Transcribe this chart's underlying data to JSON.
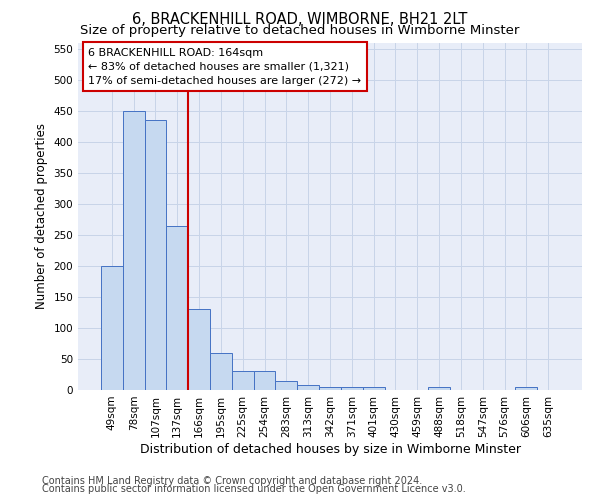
{
  "title": "6, BRACKENHILL ROAD, WIMBORNE, BH21 2LT",
  "subtitle": "Size of property relative to detached houses in Wimborne Minster",
  "xlabel": "Distribution of detached houses by size in Wimborne Minster",
  "ylabel": "Number of detached properties",
  "footnote1": "Contains HM Land Registry data © Crown copyright and database right 2024.",
  "footnote2": "Contains public sector information licensed under the Open Government Licence v3.0.",
  "bar_labels": [
    "49sqm",
    "78sqm",
    "107sqm",
    "137sqm",
    "166sqm",
    "195sqm",
    "225sqm",
    "254sqm",
    "283sqm",
    "313sqm",
    "342sqm",
    "371sqm",
    "401sqm",
    "430sqm",
    "459sqm",
    "488sqm",
    "518sqm",
    "547sqm",
    "576sqm",
    "606sqm",
    "635sqm"
  ],
  "bar_values": [
    200,
    450,
    435,
    265,
    130,
    60,
    30,
    30,
    15,
    8,
    5,
    5,
    5,
    0,
    0,
    5,
    0,
    0,
    0,
    5,
    0
  ],
  "bar_color": "#c6d9f0",
  "bar_edge_color": "#4472c4",
  "vline_color": "#cc0000",
  "vline_x_index": 4,
  "annotation_text": "6 BRACKENHILL ROAD: 164sqm\n← 83% of detached houses are smaller (1,321)\n17% of semi-detached houses are larger (272) →",
  "annotation_box_color": "#ffffff",
  "annotation_box_edge": "#cc0000",
  "ylim": [
    0,
    560
  ],
  "yticks": [
    0,
    50,
    100,
    150,
    200,
    250,
    300,
    350,
    400,
    450,
    500,
    550
  ],
  "grid_color": "#c8d4e8",
  "background_color": "#e8edf8",
  "title_fontsize": 10.5,
  "subtitle_fontsize": 9.5,
  "footnote_fontsize": 7.0,
  "tick_fontsize": 7.5,
  "ylabel_fontsize": 8.5,
  "xlabel_fontsize": 9.0
}
